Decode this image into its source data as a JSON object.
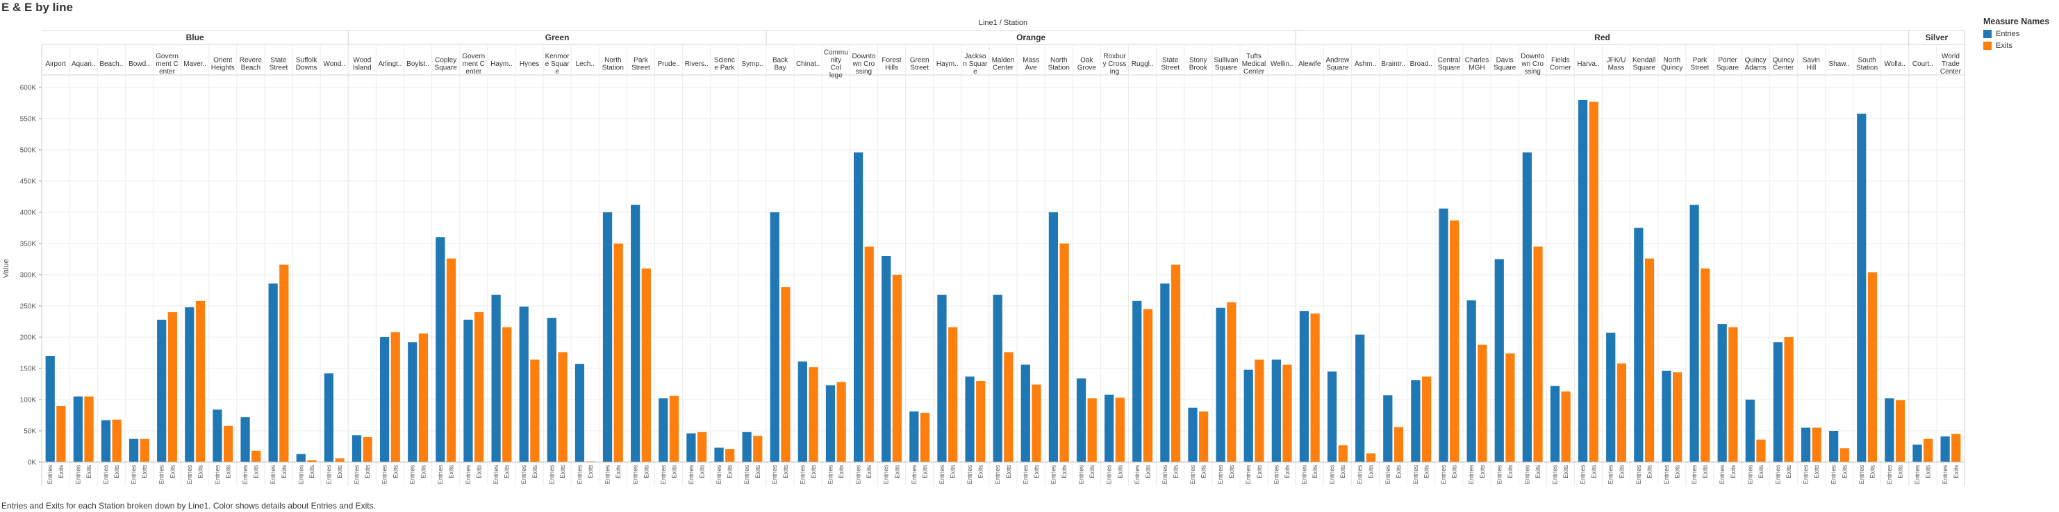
{
  "title": "E & E by line",
  "caption": "Entries and Exits for each Station broken down by Line1.  Color shows details about Entries and Exits.",
  "legend": {
    "title": "Measure Names",
    "items": [
      {
        "label": "Entries",
        "color": "#1f77b4"
      },
      {
        "label": "Exits",
        "color": "#ff7f0e"
      }
    ]
  },
  "chart_data": {
    "type": "bar",
    "column_header": "Line1  /  Station",
    "ylabel": "Value",
    "ylim": [
      0,
      620000
    ],
    "yticks": [
      0,
      50000,
      100000,
      150000,
      200000,
      250000,
      300000,
      350000,
      400000,
      450000,
      500000,
      550000,
      600000
    ],
    "ytick_labels": [
      "0K",
      "50K",
      "100K",
      "150K",
      "200K",
      "250K",
      "300K",
      "350K",
      "400K",
      "450K",
      "500K",
      "550K",
      "600K"
    ],
    "measures": [
      "Entries",
      "Exits"
    ],
    "gridlines": true,
    "lines": [
      {
        "name": "Blue",
        "stations": [
          {
            "label": "Airport",
            "entries": 170000,
            "exits": 90000
          },
          {
            "label": "Aquari..",
            "entries": 105000,
            "exits": 105000
          },
          {
            "label": "Beach..",
            "entries": 67000,
            "exits": 68000
          },
          {
            "label": "Bowd..",
            "entries": 37000,
            "exits": 37000
          },
          {
            "label": "Govern ment C enter",
            "entries": 228000,
            "exits": 240000
          },
          {
            "label": "Maver..",
            "entries": 248000,
            "exits": 258000
          },
          {
            "label": "Orient Heights",
            "entries": 84000,
            "exits": 58000
          },
          {
            "label": "Revere Beach",
            "entries": 72000,
            "exits": 18000
          },
          {
            "label": "State Street",
            "entries": 286000,
            "exits": 316000
          },
          {
            "label": "Suffolk Downs",
            "entries": 13000,
            "exits": 3000
          },
          {
            "label": "Wond..",
            "entries": 142000,
            "exits": 6000
          }
        ]
      },
      {
        "name": "Green",
        "stations": [
          {
            "label": "Wood Island",
            "entries": 43000,
            "exits": 40000
          },
          {
            "label": "Arlingt..",
            "entries": 200000,
            "exits": 208000
          },
          {
            "label": "Boylst..",
            "entries": 192000,
            "exits": 206000
          },
          {
            "label": "Copley Square",
            "entries": 360000,
            "exits": 326000
          },
          {
            "label": "Govern ment C enter",
            "entries": 228000,
            "exits": 240000
          },
          {
            "label": "Haym..",
            "entries": 268000,
            "exits": 216000
          },
          {
            "label": "Hynes",
            "entries": 249000,
            "exits": 164000
          },
          {
            "label": "Kenmor e Squar e",
            "entries": 231000,
            "exits": 176000
          },
          {
            "label": "Lech..",
            "entries": 157000,
            "exits": 1000
          },
          {
            "label": "North Station",
            "entries": 400000,
            "exits": 350000
          },
          {
            "label": "Park Street",
            "entries": 412000,
            "exits": 310000
          },
          {
            "label": "Prude..",
            "entries": 102000,
            "exits": 106000
          },
          {
            "label": "Rivers..",
            "entries": 46000,
            "exits": 48000
          },
          {
            "label": "Scienc e Park",
            "entries": 23000,
            "exits": 21000
          },
          {
            "label": "Symp..",
            "entries": 48000,
            "exits": 42000
          }
        ]
      },
      {
        "name": "Orange",
        "stations": [
          {
            "label": "Back Bay",
            "entries": 400000,
            "exits": 280000
          },
          {
            "label": "Chinat..",
            "entries": 161000,
            "exits": 152000
          },
          {
            "label": "Commu nity Col lege",
            "entries": 123000,
            "exits": 128000
          },
          {
            "label": "Downto wn Cro ssing",
            "entries": 496000,
            "exits": 345000
          },
          {
            "label": "Forest Hills",
            "entries": 330000,
            "exits": 300000
          },
          {
            "label": "Green Street",
            "entries": 81000,
            "exits": 79000
          },
          {
            "label": "Haym..",
            "entries": 268000,
            "exits": 216000
          },
          {
            "label": "Jackso n Squar e",
            "entries": 137000,
            "exits": 130000
          },
          {
            "label": "Malden Center",
            "entries": 268000,
            "exits": 176000
          },
          {
            "label": "Mass Ave",
            "entries": 156000,
            "exits": 124000
          },
          {
            "label": "North Station",
            "entries": 400000,
            "exits": 350000
          },
          {
            "label": "Oak Grove",
            "entries": 134000,
            "exits": 102000
          },
          {
            "label": "Roxbur y Cross ing",
            "entries": 108000,
            "exits": 103000
          },
          {
            "label": "Ruggl..",
            "entries": 258000,
            "exits": 245000
          },
          {
            "label": "State Street",
            "entries": 286000,
            "exits": 316000
          },
          {
            "label": "Stony Brook",
            "entries": 87000,
            "exits": 81000
          },
          {
            "label": "Sullivan Square",
            "entries": 247000,
            "exits": 256000
          },
          {
            "label": "Tufts Medical Center",
            "entries": 148000,
            "exits": 164000
          },
          {
            "label": "Wellin..",
            "entries": 164000,
            "exits": 156000
          }
        ]
      },
      {
        "name": "Red",
        "stations": [
          {
            "label": "Alewife",
            "entries": 242000,
            "exits": 238000
          },
          {
            "label": "Andrew Square",
            "entries": 145000,
            "exits": 27000
          },
          {
            "label": "Ashm..",
            "entries": 204000,
            "exits": 14000
          },
          {
            "label": "Braintr..",
            "entries": 107000,
            "exits": 56000
          },
          {
            "label": "Broad..",
            "entries": 131000,
            "exits": 137000
          },
          {
            "label": "Central Square",
            "entries": 406000,
            "exits": 387000
          },
          {
            "label": "Charles MGH",
            "entries": 259000,
            "exits": 188000
          },
          {
            "label": "Davis Square",
            "entries": 325000,
            "exits": 174000
          },
          {
            "label": "Downto wn Cro ssing",
            "entries": 496000,
            "exits": 345000
          },
          {
            "label": "Fields Corner",
            "entries": 122000,
            "exits": 113000
          },
          {
            "label": "Harva..",
            "entries": 580000,
            "exits": 577000
          },
          {
            "label": "JFK/U Mass",
            "entries": 207000,
            "exits": 158000
          },
          {
            "label": "Kendall Square",
            "entries": 375000,
            "exits": 326000
          },
          {
            "label": "North Quincy",
            "entries": 146000,
            "exits": 144000
          },
          {
            "label": "Park Street",
            "entries": 412000,
            "exits": 310000
          },
          {
            "label": "Porter Square",
            "entries": 221000,
            "exits": 216000
          },
          {
            "label": "Quincy Adams",
            "entries": 100000,
            "exits": 36000
          },
          {
            "label": "Quincy Center",
            "entries": 192000,
            "exits": 200000
          },
          {
            "label": "Savin Hill",
            "entries": 55000,
            "exits": 55000
          },
          {
            "label": "Shaw..",
            "entries": 50000,
            "exits": 22000
          },
          {
            "label": "South Station",
            "entries": 558000,
            "exits": 304000
          },
          {
            "label": "Wolla..",
            "entries": 102000,
            "exits": 99000
          }
        ]
      },
      {
        "name": "Silver",
        "stations": [
          {
            "label": "Court..",
            "entries": 28000,
            "exits": 37000
          },
          {
            "label": "World Trade Center",
            "entries": 41000,
            "exits": 45000
          }
        ]
      }
    ]
  }
}
